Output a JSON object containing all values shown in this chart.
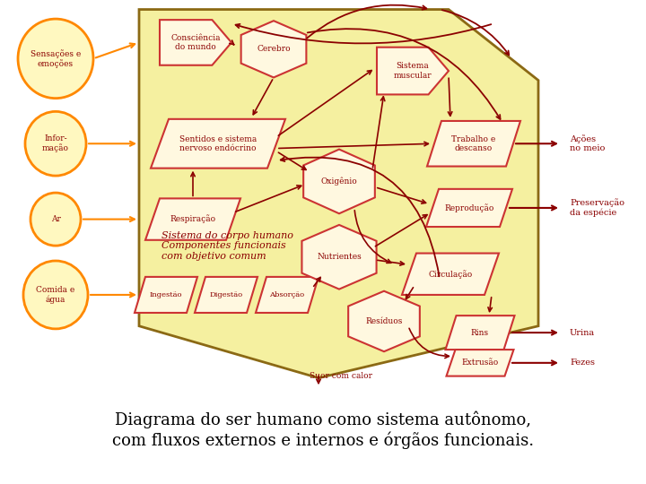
{
  "bg_color": "#ffffff",
  "hex_color": "#f5f0a0",
  "hex_border": "#8B6914",
  "box_fill": "#fff8e0",
  "box_border": "#cc3333",
  "circle_fill": "#fff8c0",
  "circle_border": "#ff8800",
  "arrow_color_dark": "#8B0000",
  "arrow_color_orange": "#ff8800",
  "text_color_dark": "#8B0000",
  "title_text": "Diagrama do ser humano como sistema autônomo,\ncom fluxos externos e internos e órgãos funcionais.",
  "system_label": "Sistema do corpo humano\nComponentes funcionais\ncom objetivo comum",
  "bottom_label": "Suor com calor"
}
